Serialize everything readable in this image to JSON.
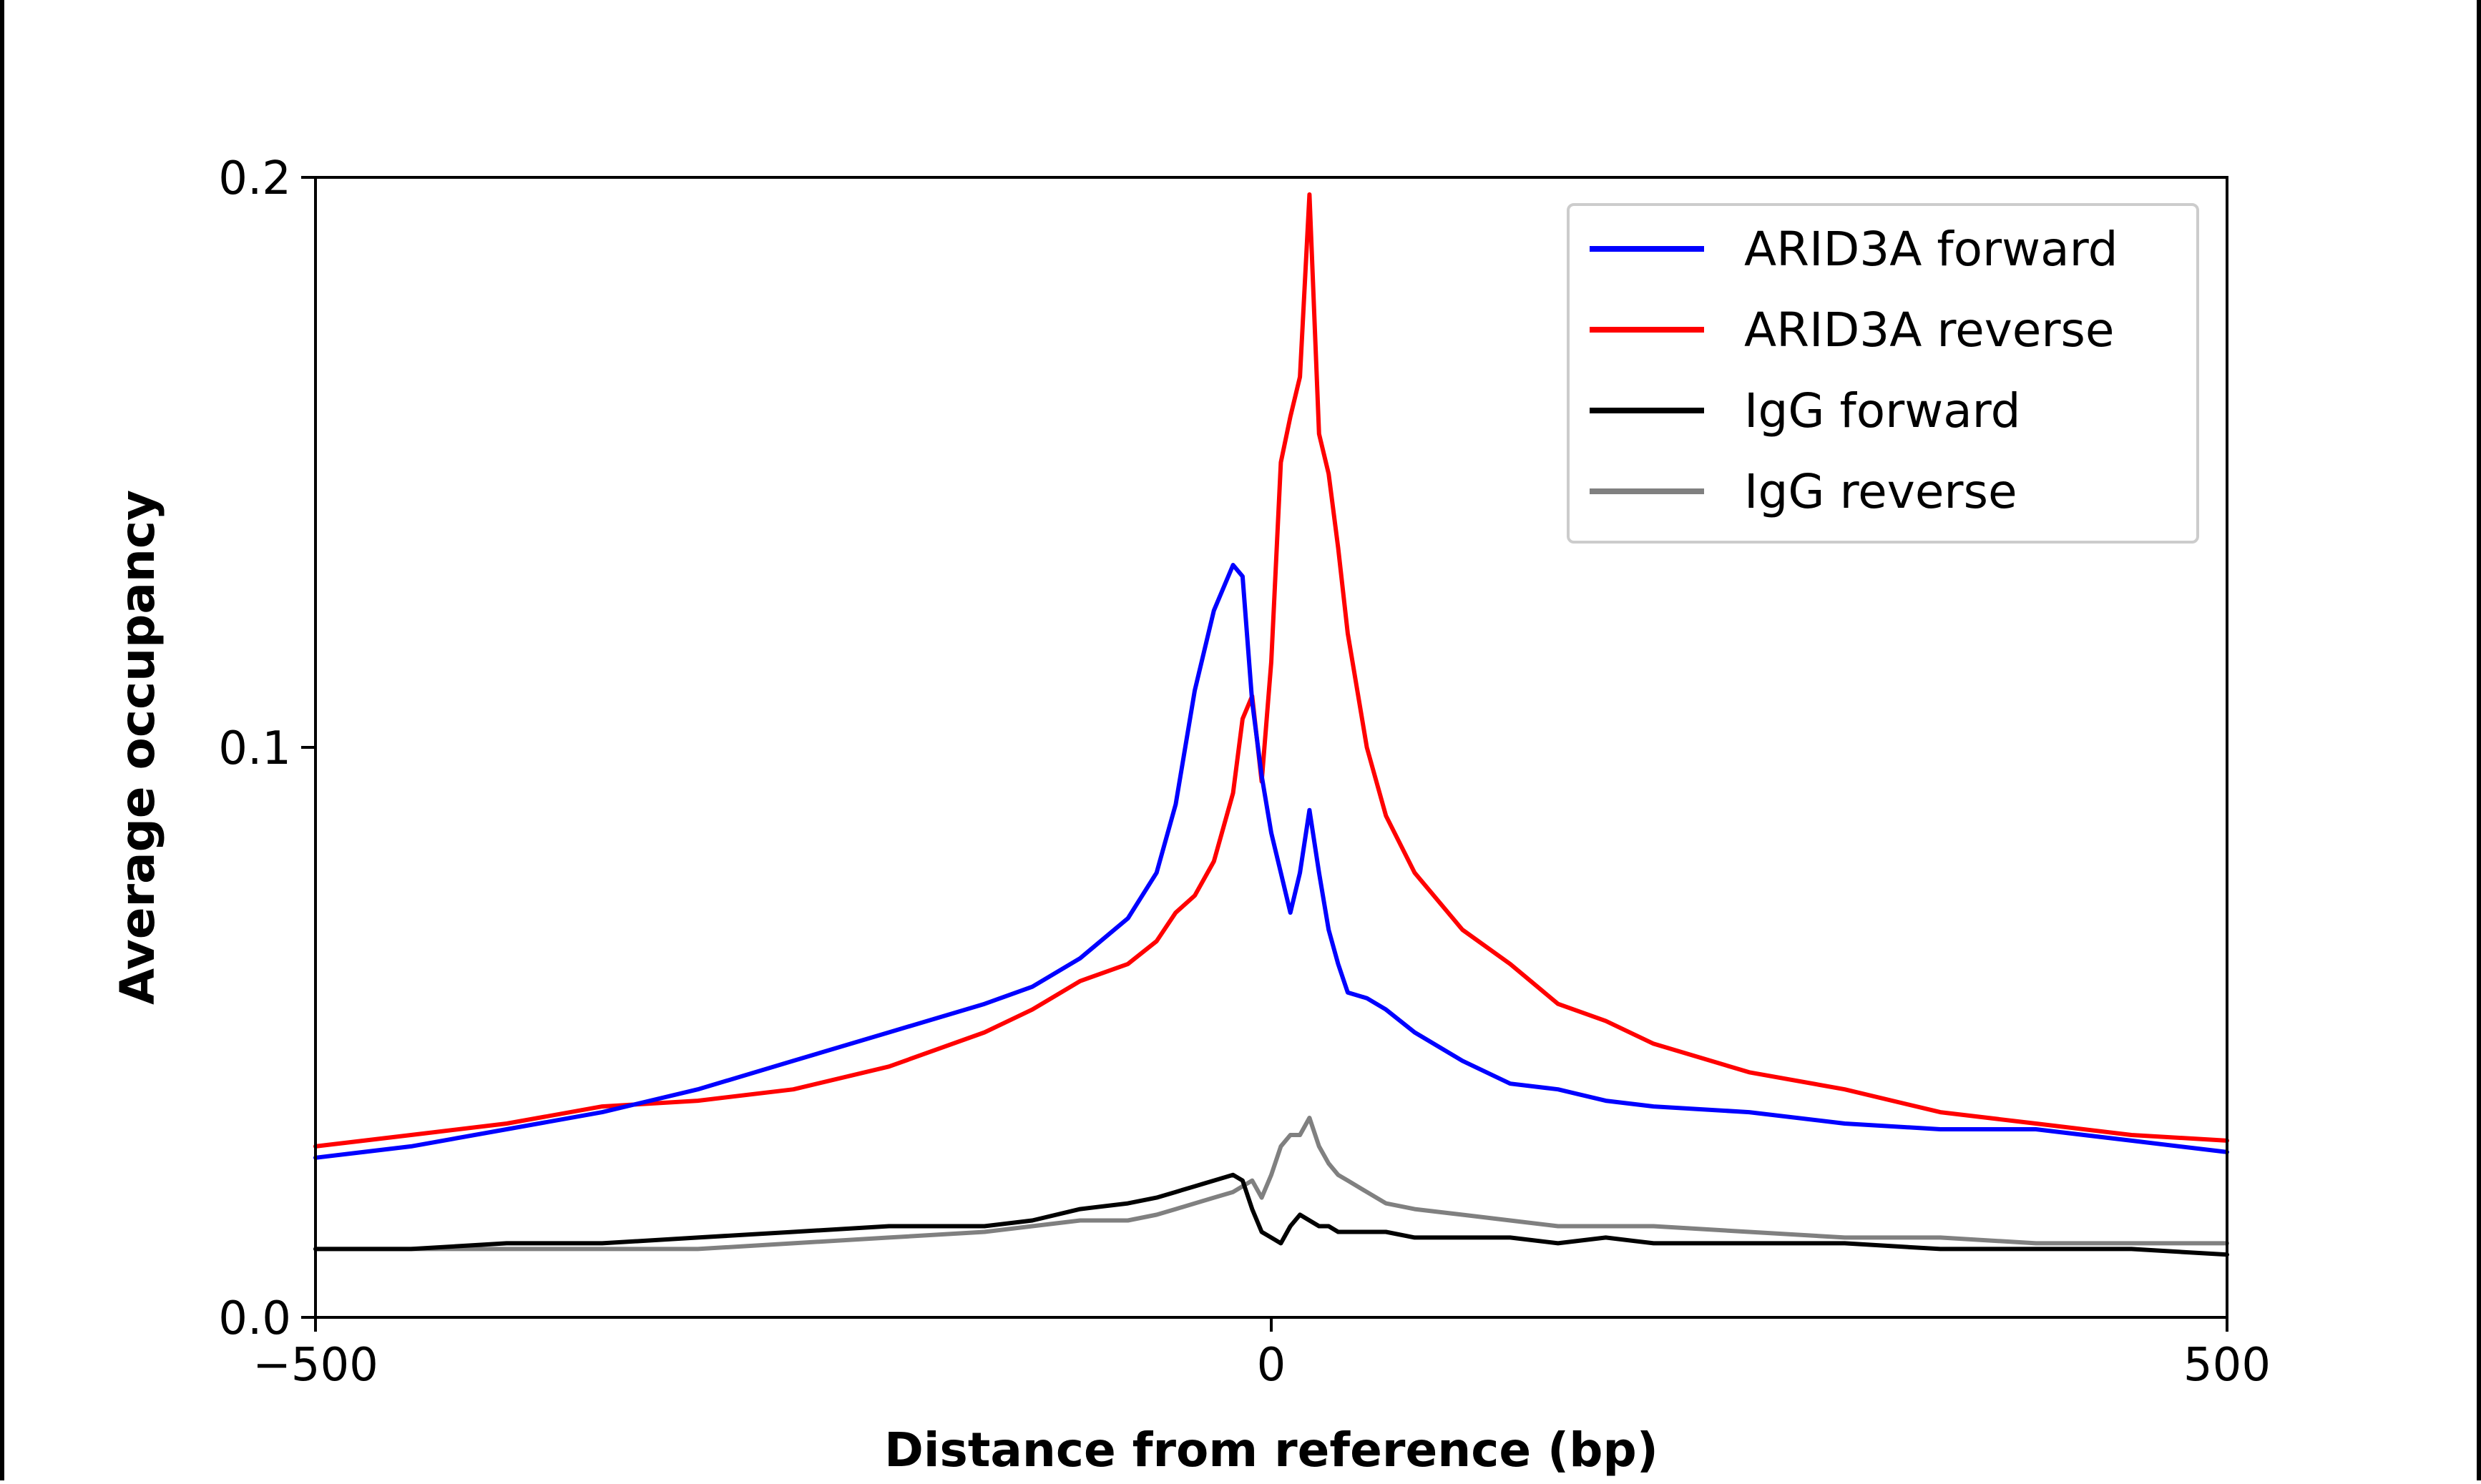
{
  "chart_data": {
    "type": "line",
    "title": "",
    "xlabel": "Distance from reference (bp)",
    "ylabel": "Average occupancy",
    "xlim": [
      -500,
      500
    ],
    "ylim": [
      0,
      0.2
    ],
    "x_ticks": [
      -500,
      0,
      500
    ],
    "x_tick_labels": [
      "−500",
      "0",
      "500"
    ],
    "y_ticks": [
      0,
      0.1,
      0.2
    ],
    "y_tick_labels": [
      "0.0",
      "0.1",
      "0.2"
    ],
    "grid": false,
    "legend_position": "top-right",
    "x": [
      -500,
      -450,
      -400,
      -350,
      -300,
      -250,
      -200,
      -150,
      -125,
      -100,
      -75,
      -60,
      -50,
      -40,
      -30,
      -20,
      -15,
      -10,
      -5,
      0,
      5,
      10,
      15,
      20,
      25,
      30,
      35,
      40,
      50,
      60,
      75,
      100,
      125,
      150,
      175,
      200,
      250,
      300,
      350,
      400,
      450,
      500
    ],
    "series": [
      {
        "name": "ARID3A forward",
        "color": "#0000ff",
        "values": [
          0.028,
          0.03,
          0.033,
          0.036,
          0.04,
          0.045,
          0.05,
          0.055,
          0.058,
          0.063,
          0.07,
          0.078,
          0.09,
          0.11,
          0.124,
          0.132,
          0.13,
          0.108,
          0.095,
          0.085,
          0.078,
          0.071,
          0.078,
          0.089,
          0.078,
          0.068,
          0.062,
          0.057,
          0.056,
          0.054,
          0.05,
          0.045,
          0.041,
          0.04,
          0.038,
          0.037,
          0.036,
          0.034,
          0.033,
          0.033,
          0.031,
          0.029
        ]
      },
      {
        "name": "ARID3A reverse",
        "color": "#ff0000",
        "values": [
          0.03,
          0.032,
          0.034,
          0.037,
          0.038,
          0.04,
          0.044,
          0.05,
          0.054,
          0.059,
          0.062,
          0.066,
          0.071,
          0.074,
          0.08,
          0.092,
          0.105,
          0.109,
          0.094,
          0.115,
          0.15,
          0.158,
          0.165,
          0.197,
          0.155,
          0.148,
          0.135,
          0.12,
          0.1,
          0.088,
          0.078,
          0.068,
          0.062,
          0.055,
          0.052,
          0.048,
          0.043,
          0.04,
          0.036,
          0.034,
          0.032,
          0.031
        ]
      },
      {
        "name": "IgG forward",
        "color": "#000000",
        "values": [
          0.012,
          0.012,
          0.013,
          0.013,
          0.014,
          0.015,
          0.016,
          0.016,
          0.017,
          0.019,
          0.02,
          0.021,
          0.022,
          0.023,
          0.024,
          0.025,
          0.024,
          0.019,
          0.015,
          0.014,
          0.013,
          0.016,
          0.018,
          0.017,
          0.016,
          0.016,
          0.015,
          0.015,
          0.015,
          0.015,
          0.014,
          0.014,
          0.014,
          0.013,
          0.014,
          0.013,
          0.013,
          0.013,
          0.012,
          0.012,
          0.012,
          0.011
        ]
      },
      {
        "name": "IgG reverse",
        "color": "#808080",
        "values": [
          0.012,
          0.012,
          0.012,
          0.012,
          0.012,
          0.013,
          0.014,
          0.015,
          0.016,
          0.017,
          0.017,
          0.018,
          0.019,
          0.02,
          0.021,
          0.022,
          0.023,
          0.024,
          0.021,
          0.025,
          0.03,
          0.032,
          0.032,
          0.035,
          0.03,
          0.027,
          0.025,
          0.024,
          0.022,
          0.02,
          0.019,
          0.018,
          0.017,
          0.016,
          0.016,
          0.016,
          0.015,
          0.014,
          0.014,
          0.013,
          0.013,
          0.013
        ]
      }
    ]
  }
}
